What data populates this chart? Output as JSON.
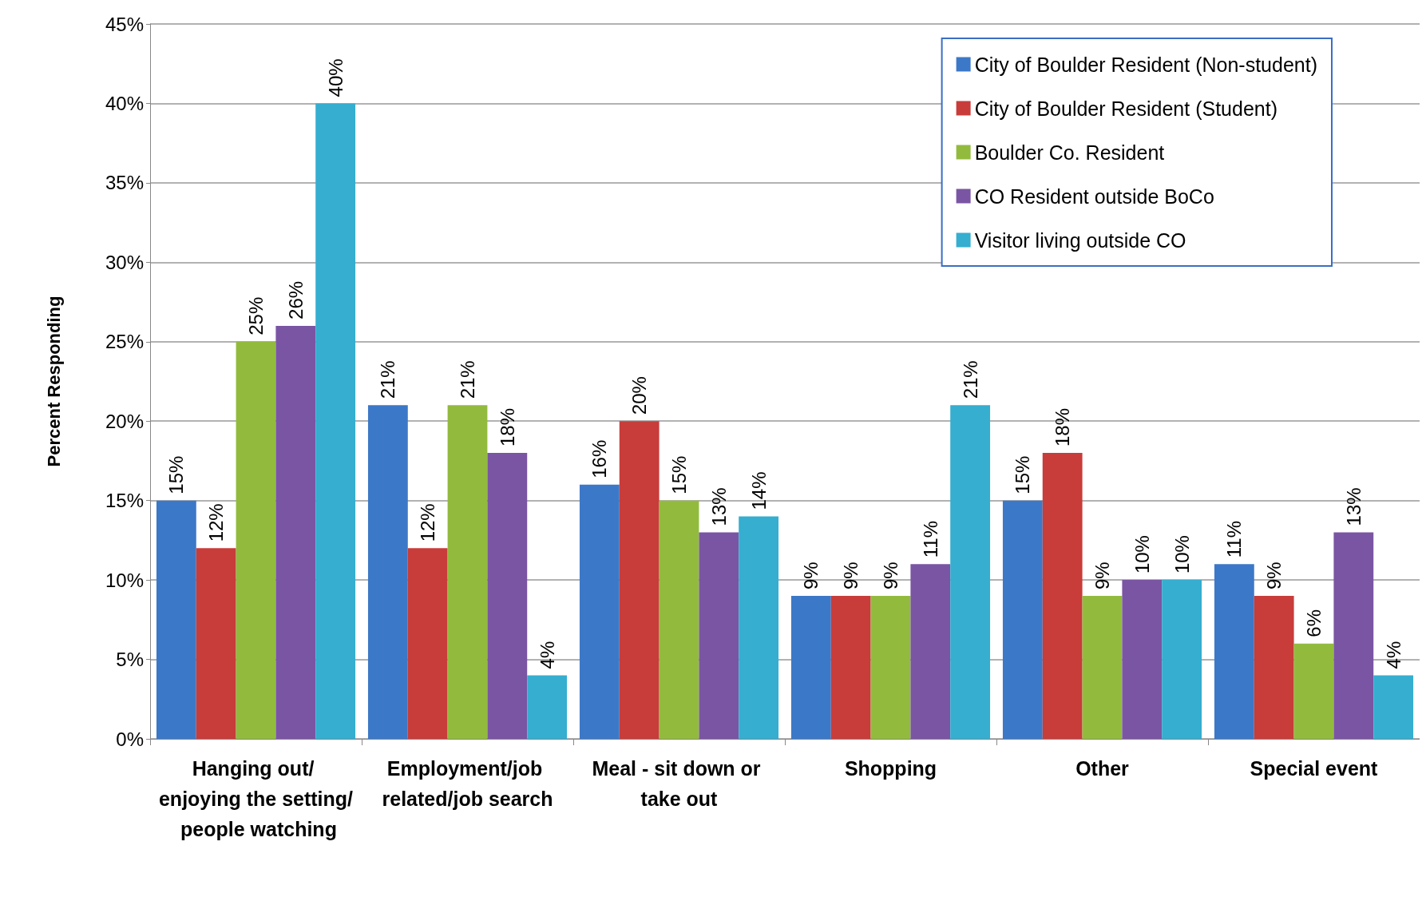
{
  "chart_data": {
    "type": "bar",
    "ylabel": "Percent Responding",
    "categories": [
      "Hanging out/ enjoying the setting/ people watching",
      "Employment/job related/job search",
      "Meal - sit down or take out",
      "Shopping",
      "Other",
      "Special event"
    ],
    "series": [
      {
        "name": "City of Boulder Resident (Non-student)",
        "color": "#3c78c8",
        "values": [
          15,
          21,
          16,
          9,
          15,
          11
        ],
        "value_labels": [
          "15%",
          "21%",
          "16%",
          "9%",
          "15%",
          "11%"
        ]
      },
      {
        "name": "City of Boulder Resident (Student)",
        "color": "#c83c3a",
        "values": [
          12,
          12,
          20,
          9,
          18,
          9
        ],
        "value_labels": [
          "12%",
          "12%",
          "20%",
          "9%",
          "18%",
          "9%"
        ]
      },
      {
        "name": "Boulder Co. Resident",
        "color": "#92bb3e",
        "values": [
          25,
          21,
          15,
          9,
          9,
          6
        ],
        "value_labels": [
          "25%",
          "21%",
          "15%",
          "9%",
          "9%",
          "6%"
        ]
      },
      {
        "name": "CO Resident outside BoCo",
        "color": "#7a55a3",
        "values": [
          26,
          18,
          13,
          11,
          10,
          13
        ],
        "value_labels": [
          "26%",
          "18%",
          "13%",
          "11%",
          "10%",
          "13%"
        ]
      },
      {
        "name": "Visitor living outside CO",
        "color": "#35aed0",
        "values": [
          40,
          4,
          14,
          21,
          10,
          4
        ],
        "value_labels": [
          "40%",
          "4%",
          "14%",
          "21%",
          "10%",
          "4%"
        ]
      }
    ],
    "ylim": [
      0,
      45
    ],
    "yticks": [
      {
        "value": 0,
        "label": "0%"
      },
      {
        "value": 5,
        "label": "5%"
      },
      {
        "value": 10,
        "label": "10%"
      },
      {
        "value": 15,
        "label": "15%"
      },
      {
        "value": 20,
        "label": "20%"
      },
      {
        "value": 25,
        "label": "25%"
      },
      {
        "value": 30,
        "label": "30%"
      },
      {
        "value": 35,
        "label": "35%"
      },
      {
        "value": 40,
        "label": "40%"
      },
      {
        "value": 45,
        "label": "45%"
      }
    ],
    "grid": "y",
    "legend": "top right"
  }
}
